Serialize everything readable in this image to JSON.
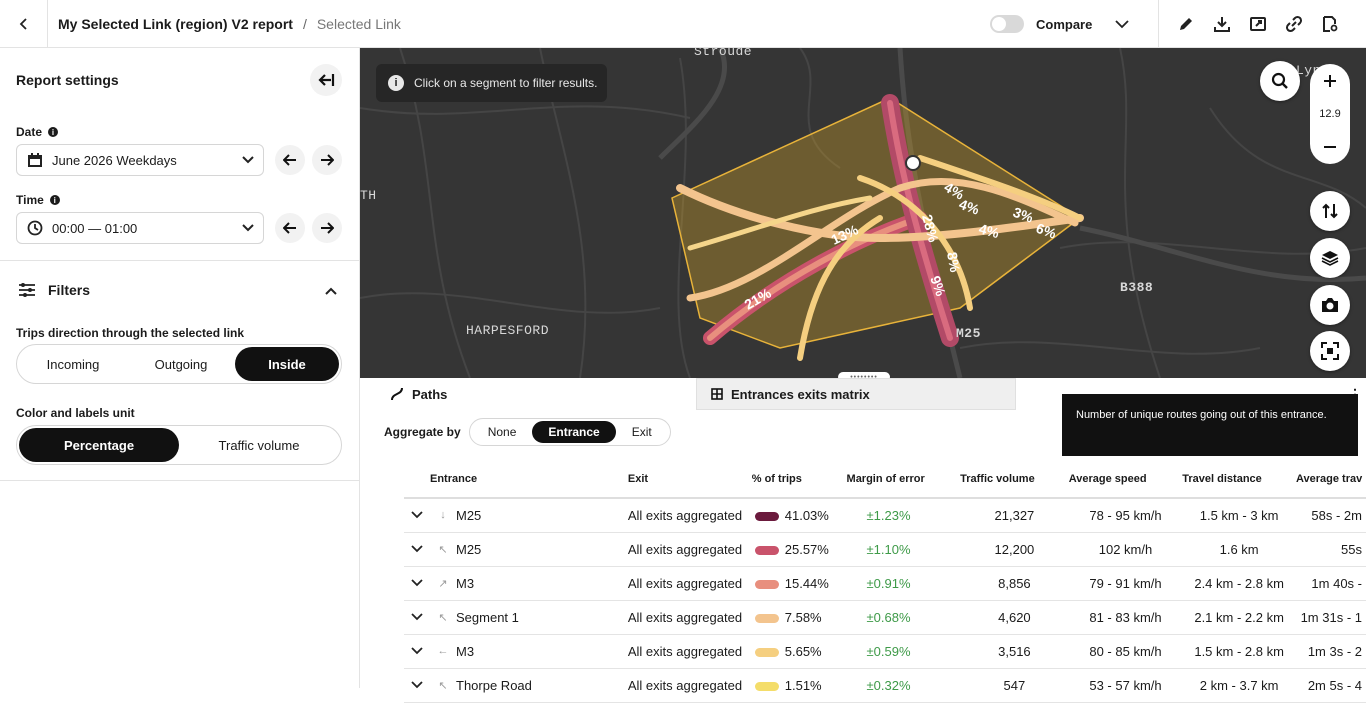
{
  "header": {
    "title": "My Selected Link (region) V2 report",
    "separator": "/",
    "subtitle": "Selected Link",
    "compare_label": "Compare"
  },
  "sidebar": {
    "title": "Report settings",
    "date_label": "Date",
    "date_value": "June 2026 Weekdays",
    "time_label": "Time",
    "time_value": "00:00 — 01:00",
    "filters_label": "Filters",
    "direction_label": "Trips direction through the selected link",
    "direction_options": [
      "Incoming",
      "Outgoing",
      "Inside"
    ],
    "direction_selected": "Inside",
    "unit_label": "Color and labels unit",
    "unit_options": [
      "Percentage",
      "Traffic volume"
    ],
    "unit_selected": "Percentage"
  },
  "map": {
    "info_message": "Click on a segment to filter results.",
    "zoom_level": "12.9",
    "labels": [
      "Stroude",
      "HARPESFORD",
      "M25",
      "B388",
      "TH",
      "Lyne"
    ],
    "segment_percents": [
      "21%",
      "13%",
      "28%",
      "9%",
      "4%",
      "3%",
      "6%",
      "4%",
      "4%",
      "8%"
    ]
  },
  "panel": {
    "tabs": [
      "Paths",
      "Entrances exits matrix"
    ],
    "active_tab": "Entrances exits matrix",
    "aggregate_label": "Aggregate by",
    "aggregate_options": [
      "None",
      "Entrance",
      "Exit"
    ],
    "aggregate_selected": "Entrance",
    "tooltip": "Number of unique routes going out of this entrance.",
    "columns": [
      "Entrance",
      "Exit",
      "% of trips",
      "Margin of error",
      "Traffic volume",
      "Average speed",
      "Travel distance",
      "Average trav"
    ],
    "rows": [
      {
        "dir": "↓",
        "entrance": "M25",
        "exit": "All exits aggregated",
        "color": "#6b1a3d",
        "pct": "41.03%",
        "moe": "±1.23%",
        "vol": "21,327",
        "speed": "78 - 95 km/h",
        "dist": "1.5 km - 3 km",
        "time": "58s - 2m"
      },
      {
        "dir": "↖",
        "entrance": "M25",
        "exit": "All exits aggregated",
        "color": "#c9536b",
        "pct": "25.57%",
        "moe": "±1.10%",
        "vol": "12,200",
        "speed": "102 km/h",
        "dist": "1.6 km",
        "time": "55s"
      },
      {
        "dir": "↗",
        "entrance": "M3",
        "exit": "All exits aggregated",
        "color": "#e88f7e",
        "pct": "15.44%",
        "moe": "±0.91%",
        "vol": "8,856",
        "speed": "79 - 91 km/h",
        "dist": "2.4 km - 2.8 km",
        "time": "1m 40s -"
      },
      {
        "dir": "↖",
        "entrance": "Segment 1",
        "exit": "All exits aggregated",
        "color": "#f3c48e",
        "pct": "7.58%",
        "moe": "±0.68%",
        "vol": "4,620",
        "speed": "81 - 83 km/h",
        "dist": "2.1 km - 2.2 km",
        "time": "1m 31s - 1"
      },
      {
        "dir": "←",
        "entrance": "M3",
        "exit": "All exits aggregated",
        "color": "#f5cf80",
        "pct": "5.65%",
        "moe": "±0.59%",
        "vol": "3,516",
        "speed": "80 - 85 km/h",
        "dist": "1.5 km - 2.8 km",
        "time": "1m 3s - 2"
      },
      {
        "dir": "↖",
        "entrance": "Thorpe Road",
        "exit": "All exits aggregated",
        "color": "#f4dd6a",
        "pct": "1.51%",
        "moe": "±0.32%",
        "vol": "547",
        "speed": "53 - 57 km/h",
        "dist": "2 km - 3.7 km",
        "time": "2m 5s - 4"
      }
    ]
  }
}
